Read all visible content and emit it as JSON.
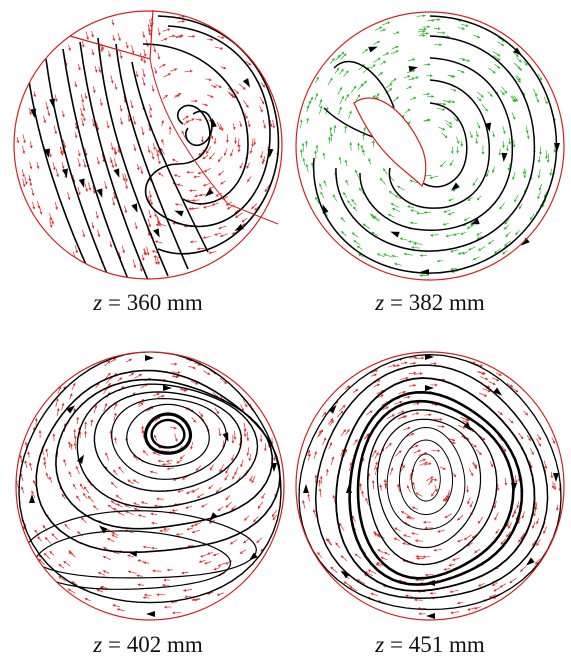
{
  "figure": {
    "colors": {
      "background": "#ffffff",
      "boundary": "#d22020",
      "streamline": "#000000",
      "vector_red": "#e02a2a",
      "vector_green": "#2bb52b"
    },
    "panels": [
      {
        "id": "p1",
        "caption": {
          "var": "z",
          "rest": " = 360 mm"
        },
        "vector_color": "red"
      },
      {
        "id": "p2",
        "caption": {
          "var": "z",
          "rest": " = 382 mm"
        },
        "vector_color": "green"
      },
      {
        "id": "p3",
        "caption": {
          "var": "z",
          "rest": " = 402 mm"
        },
        "vector_color": "red"
      },
      {
        "id": "p4",
        "caption": {
          "var": "z",
          "rest": " = 451 mm"
        },
        "vector_color": "red"
      }
    ]
  }
}
